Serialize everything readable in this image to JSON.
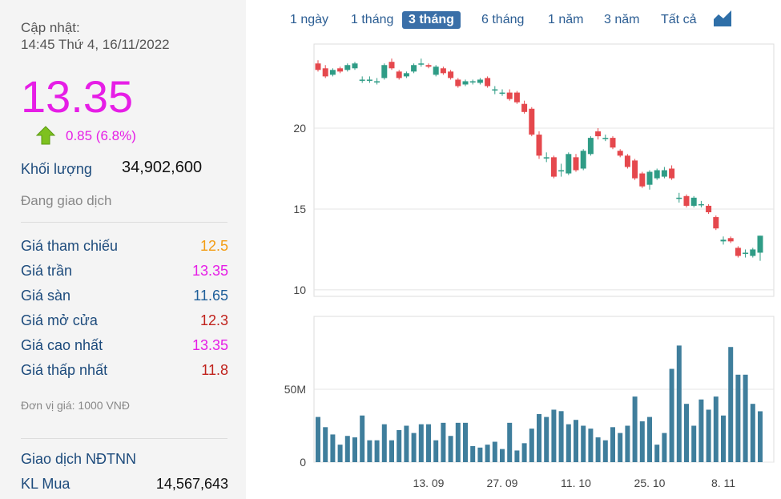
{
  "sidebar": {
    "update_label": "Cập nhật:",
    "update_time": "14:45 Thứ 4, 16/11/2022",
    "price": "13.35",
    "change": "0.85 (6.8%)",
    "volume_label": "Khối lượng",
    "volume": "34,902,600",
    "status": "Đang giao dịch",
    "rows": [
      {
        "label": "Giá tham chiếu",
        "value": "12.5",
        "color": "#f39c12"
      },
      {
        "label": "Giá trần",
        "value": "13.35",
        "color": "#e61ee6"
      },
      {
        "label": "Giá sàn",
        "value": "11.65",
        "color": "#1f5f9a"
      },
      {
        "label": "Giá mở cửa",
        "value": "12.3",
        "color": "#c0221c"
      },
      {
        "label": "Giá cao nhất",
        "value": "13.35",
        "color": "#e61ee6"
      },
      {
        "label": "Giá thấp nhất",
        "value": "11.8",
        "color": "#c0221c"
      }
    ],
    "unit_note": "Đơn vị giá: 1000 VNĐ",
    "foreign_title": "Giao dịch NĐTNN",
    "buy_label": "KL Mua",
    "buy_value": "14,567,643"
  },
  "range_tabs": {
    "items": [
      "1 ngày",
      "1 tháng",
      "3 tháng",
      "6 tháng",
      "1 năm",
      "3 năm",
      "Tất cả"
    ],
    "active": 2
  },
  "chart_data": [
    {
      "type": "candlestick",
      "up_color": "#2f9c86",
      "down_color": "#e5484d",
      "ylim": [
        9.6,
        25.2
      ],
      "yticks": [
        10,
        15,
        20
      ],
      "grid": true,
      "open": [
        24.0,
        23.7,
        23.3,
        23.7,
        23.6,
        23.7,
        23.0,
        23.0,
        22.9,
        23.1,
        24.1,
        23.5,
        23.2,
        23.5,
        24.0,
        23.9,
        23.3,
        23.7,
        23.5,
        23.0,
        22.7,
        22.9,
        22.8,
        23.1,
        22.4,
        22.2,
        22.2,
        22.2,
        21.5,
        21.2,
        19.6,
        18.2,
        18.2,
        17.4,
        17.2,
        18.2,
        17.5,
        18.4,
        19.8,
        19.4,
        19.4,
        18.6,
        18.3,
        18.0,
        17.2,
        16.5,
        16.9,
        17.0,
        17.5,
        15.7,
        15.8,
        15.2,
        15.3,
        15.2,
        14.5,
        13.0,
        13.2,
        12.6,
        12.3,
        12.1,
        12.3
      ],
      "high": [
        24.2,
        23.9,
        23.7,
        23.8,
        24.0,
        24.1,
        23.2,
        23.2,
        23.1,
        24.0,
        24.3,
        23.6,
        23.5,
        24.0,
        24.3,
        24.0,
        23.9,
        23.8,
        23.6,
        23.1,
        23.0,
        23.0,
        23.1,
        23.2,
        22.6,
        22.4,
        22.4,
        22.3,
        21.7,
        21.3,
        19.8,
        18.5,
        18.3,
        17.8,
        18.5,
        18.4,
        18.7,
        19.5,
        20.0,
        19.6,
        19.5,
        18.7,
        18.4,
        18.1,
        17.3,
        17.4,
        17.5,
        17.6,
        17.7,
        16.0,
        15.9,
        15.8,
        15.5,
        15.3,
        14.6,
        13.3,
        13.3,
        12.7,
        12.5,
        12.6,
        13.35
      ],
      "low": [
        23.5,
        23.1,
        23.2,
        23.4,
        23.5,
        23.6,
        22.8,
        22.8,
        22.7,
        23.0,
        23.6,
        23.0,
        23.1,
        23.4,
        23.8,
        23.7,
        23.2,
        23.3,
        23.0,
        22.5,
        22.6,
        22.7,
        22.7,
        22.5,
        22.1,
        22.0,
        21.7,
        21.5,
        20.9,
        19.5,
        18.1,
        17.9,
        16.9,
        17.0,
        17.1,
        17.3,
        17.4,
        18.3,
        19.3,
        19.2,
        18.7,
        18.2,
        17.5,
        16.8,
        16.3,
        16.2,
        16.8,
        16.9,
        16.8,
        15.4,
        15.1,
        15.1,
        15.1,
        14.7,
        13.7,
        12.8,
        12.9,
        12.0,
        12.0,
        12.0,
        11.8
      ],
      "close": [
        23.6,
        23.2,
        23.6,
        23.5,
        23.9,
        24.0,
        23.0,
        23.0,
        22.9,
        23.9,
        23.7,
        23.1,
        23.4,
        23.9,
        24.0,
        23.8,
        23.8,
        23.4,
        23.1,
        22.6,
        22.9,
        22.9,
        23.0,
        22.6,
        22.4,
        22.2,
        21.8,
        21.6,
        21.0,
        19.6,
        18.3,
        18.2,
        17.0,
        17.4,
        18.4,
        17.4,
        18.6,
        19.4,
        19.5,
        19.4,
        18.8,
        18.3,
        17.6,
        16.9,
        16.4,
        17.3,
        17.4,
        17.4,
        16.9,
        15.7,
        15.2,
        15.7,
        15.3,
        14.8,
        13.8,
        13.1,
        13.0,
        12.1,
        12.3,
        12.5,
        13.35
      ]
    },
    {
      "type": "bar",
      "color": "#3f7e9c",
      "categories": [
        null,
        null,
        null,
        null,
        null,
        null,
        null,
        null,
        null,
        null,
        null,
        null,
        null,
        null,
        null,
        "13. 09",
        null,
        null,
        null,
        null,
        null,
        null,
        null,
        null,
        null,
        "27. 09",
        null,
        null,
        null,
        null,
        null,
        null,
        null,
        null,
        null,
        "11. 10",
        null,
        null,
        null,
        null,
        null,
        null,
        null,
        null,
        null,
        "25. 10",
        null,
        null,
        null,
        null,
        null,
        null,
        null,
        null,
        null,
        "8. 11",
        null,
        null,
        null,
        null,
        null
      ],
      "values": [
        31000000,
        24000000,
        19000000,
        12000000,
        18000000,
        17000000,
        32000000,
        15000000,
        15000000,
        26000000,
        15000000,
        22000000,
        25000000,
        20000000,
        26000000,
        26000000,
        15000000,
        27000000,
        18000000,
        27000000,
        27000000,
        11000000,
        10000000,
        12000000,
        14000000,
        9000000,
        27000000,
        8000000,
        13000000,
        23000000,
        33000000,
        31000000,
        36000000,
        35000000,
        26000000,
        29000000,
        25000000,
        23000000,
        17000000,
        15000000,
        24000000,
        20000000,
        25000000,
        45000000,
        28000000,
        31000000,
        12000000,
        20000000,
        64000000,
        80000000,
        40000000,
        25000000,
        43000000,
        36000000,
        45000000,
        32000000,
        79000000,
        60000000,
        60000000,
        40000000,
        34902600
      ],
      "ylim": [
        0,
        100000000
      ],
      "yticks": [
        0,
        {
          "value": 50000000,
          "label": "50M"
        }
      ],
      "grid": true
    }
  ]
}
